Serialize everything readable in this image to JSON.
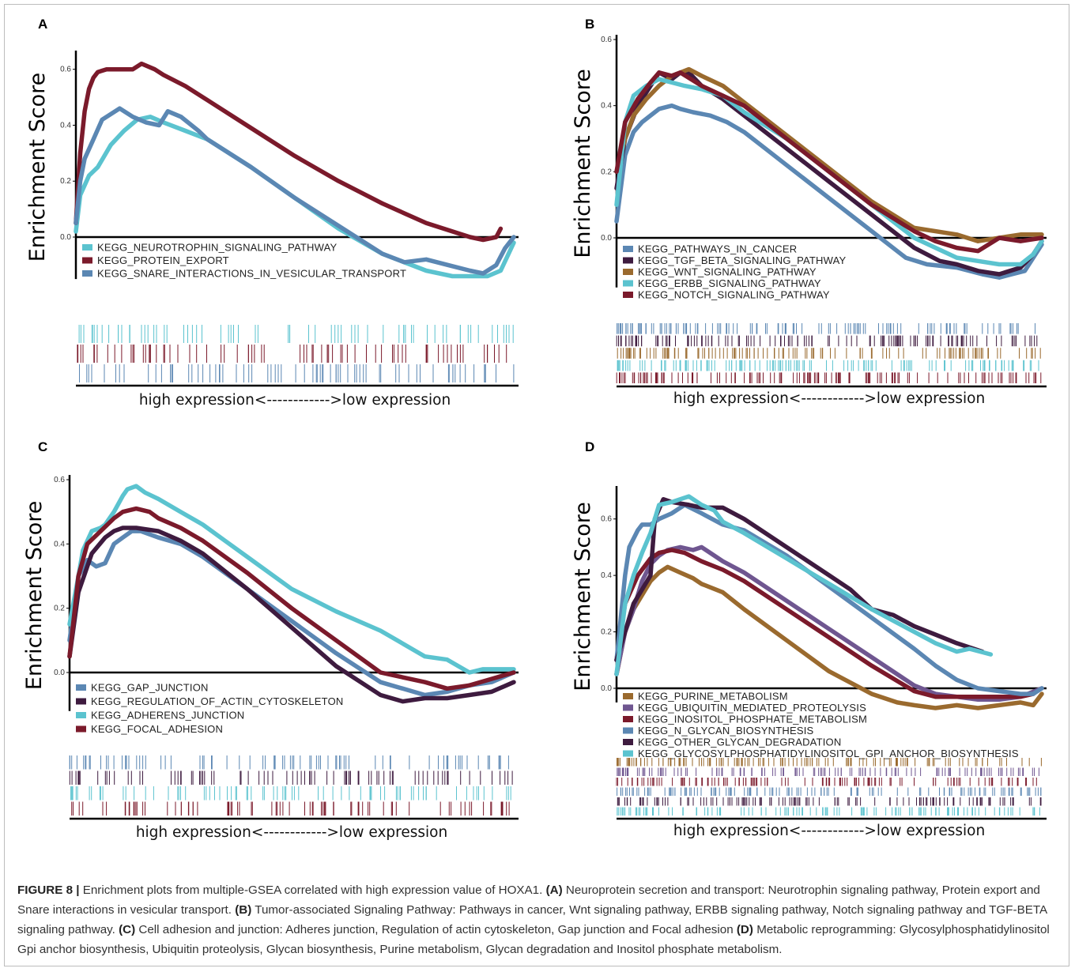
{
  "caption": {
    "figure_label": "FIGURE 8 |",
    "intro": " Enrichment plots from multiple-GSEA correlated with high expression value of HOXA1. ",
    "a_label": "(A)",
    "a_text": " Neuroprotein secretion and transport: Neurotrophin signaling pathway, Protein export and Snare interactions in vesicular transport. ",
    "b_label": "(B)",
    "b_text": " Tumor-associated Signaling Pathway: Pathways in cancer, Wnt signaling pathway, ERBB signaling pathway, Notch signaling pathway and TGF-BETA signaling pathway. ",
    "c_label": "(C)",
    "c_text": " Cell adhesion and junction: Adheres junction, Regulation of actin cytoskeleton, Gap junction and Focal adhesion ",
    "d_label": "(D)",
    "d_text": " Metabolic reprogramming: Glycosylphosphatidylinositol Gpi anchor biosynthesis, Ubiquitin proteolysis, Glycan biosynthesis, Purine metabolism, Glycan degradation and Inositol phosphate metabolism."
  },
  "colors": {
    "cyan": "#5bc3cf",
    "darkred": "#7b1a2b",
    "steelblue": "#5b87b3",
    "darkpurple": "#3e1b3f",
    "brown": "#9a6a2e",
    "purple": "#6f5690",
    "black": "#000000"
  },
  "chart_data": [
    {
      "panel": "A",
      "type": "line",
      "ylabel": "Enrichment Score",
      "xlabel": "high expression<------------>low expression",
      "ylim": [
        -0.15,
        0.65
      ],
      "yticks": [
        "0.6",
        "0.4",
        "0.2",
        "0.0"
      ],
      "ytick_values": [
        0.6,
        0.4,
        0.2,
        0.0
      ],
      "x_range": [
        0,
        1
      ],
      "legend_position": "bottom-left",
      "series": [
        {
          "name": "KEGG_NEUROTROPHIN_SIGNALING_PATHWAY",
          "color": "#5bc3cf",
          "x": [
            0,
            0.01,
            0.03,
            0.05,
            0.08,
            0.11,
            0.14,
            0.17,
            0.2,
            0.25,
            0.3,
            0.4,
            0.5,
            0.6,
            0.7,
            0.8,
            0.86,
            0.9,
            0.94,
            0.97,
            1.0
          ],
          "y": [
            0.02,
            0.15,
            0.22,
            0.25,
            0.33,
            0.38,
            0.42,
            0.43,
            0.41,
            0.38,
            0.35,
            0.25,
            0.14,
            0.03,
            -0.06,
            -0.12,
            -0.14,
            -0.14,
            -0.14,
            -0.12,
            -0.02
          ]
        },
        {
          "name": "KEGG_PROTEIN_EXPORT",
          "color": "#7b1a2b",
          "x": [
            0,
            0.01,
            0.02,
            0.03,
            0.04,
            0.05,
            0.07,
            0.1,
            0.13,
            0.15,
            0.18,
            0.2,
            0.25,
            0.3,
            0.4,
            0.5,
            0.6,
            0.7,
            0.8,
            0.9,
            0.93,
            0.96,
            0.97
          ],
          "y": [
            0.05,
            0.3,
            0.45,
            0.53,
            0.57,
            0.59,
            0.6,
            0.6,
            0.6,
            0.62,
            0.6,
            0.58,
            0.54,
            0.49,
            0.39,
            0.29,
            0.2,
            0.12,
            0.05,
            0.0,
            -0.01,
            0.0,
            0.03
          ]
        },
        {
          "name": "KEGG_SNARE_INTERACTIONS_IN_VESICULAR_TRANSPORT",
          "color": "#5b87b3",
          "x": [
            0,
            0.01,
            0.02,
            0.04,
            0.06,
            0.08,
            0.1,
            0.13,
            0.16,
            0.19,
            0.21,
            0.24,
            0.28,
            0.3,
            0.4,
            0.5,
            0.6,
            0.7,
            0.75,
            0.8,
            0.85,
            0.9,
            0.93,
            0.96,
            0.98,
            1.0
          ],
          "y": [
            0.05,
            0.2,
            0.28,
            0.35,
            0.42,
            0.44,
            0.46,
            0.43,
            0.41,
            0.4,
            0.45,
            0.43,
            0.38,
            0.35,
            0.25,
            0.14,
            0.04,
            -0.06,
            -0.09,
            -0.08,
            -0.1,
            -0.12,
            -0.13,
            -0.1,
            -0.04,
            0.0
          ]
        }
      ]
    },
    {
      "panel": "B",
      "type": "line",
      "ylabel": "Enrichment Score",
      "xlabel": "high expression<------------>low expression",
      "ylim": [
        -0.15,
        0.6
      ],
      "yticks": [
        "0.6",
        "0.4",
        "0.2",
        "0.0"
      ],
      "ytick_values": [
        0.6,
        0.4,
        0.2,
        0.0
      ],
      "x_range": [
        0,
        1
      ],
      "legend_position": "bottom-left",
      "series": [
        {
          "name": "KEGG_PATHWAYS_IN_CANCER",
          "color": "#5b87b3",
          "x": [
            0,
            0.02,
            0.04,
            0.06,
            0.08,
            0.1,
            0.13,
            0.15,
            0.18,
            0.22,
            0.26,
            0.3,
            0.35,
            0.4,
            0.5,
            0.6,
            0.68,
            0.73,
            0.8,
            0.86,
            0.9,
            0.93,
            0.96,
            0.98,
            1.0
          ],
          "y": [
            0.05,
            0.25,
            0.32,
            0.35,
            0.37,
            0.39,
            0.4,
            0.39,
            0.38,
            0.37,
            0.35,
            0.32,
            0.27,
            0.22,
            0.12,
            0.02,
            -0.06,
            -0.08,
            -0.09,
            -0.11,
            -0.12,
            -0.11,
            -0.1,
            -0.06,
            -0.02
          ]
        },
        {
          "name": "KEGG_TGF_BETA_SIGNALING_PATHWAY",
          "color": "#3e1b3f",
          "x": [
            0,
            0.02,
            0.05,
            0.08,
            0.1,
            0.13,
            0.15,
            0.17,
            0.2,
            0.25,
            0.3,
            0.4,
            0.5,
            0.6,
            0.7,
            0.76,
            0.8,
            0.85,
            0.9,
            0.95,
            0.98,
            1.0
          ],
          "y": [
            0.15,
            0.3,
            0.4,
            0.46,
            0.5,
            0.48,
            0.5,
            0.5,
            0.46,
            0.42,
            0.37,
            0.27,
            0.17,
            0.07,
            -0.03,
            -0.07,
            -0.08,
            -0.1,
            -0.11,
            -0.09,
            -0.05,
            -0.01
          ]
        },
        {
          "name": "KEGG_WNT_SIGNALING_PATHWAY",
          "color": "#9a6a2e",
          "x": [
            0,
            0.02,
            0.04,
            0.07,
            0.1,
            0.13,
            0.15,
            0.17,
            0.2,
            0.25,
            0.3,
            0.4,
            0.5,
            0.6,
            0.7,
            0.8,
            0.85,
            0.9,
            0.95,
            1.0
          ],
          "y": [
            0.2,
            0.3,
            0.37,
            0.42,
            0.46,
            0.49,
            0.5,
            0.51,
            0.49,
            0.46,
            0.41,
            0.31,
            0.21,
            0.11,
            0.03,
            0.01,
            -0.01,
            0.0,
            0.01,
            0.01
          ]
        },
        {
          "name": "KEGG_ERBB_SIGNALING_PATHWAY",
          "color": "#5bc3cf",
          "x": [
            0,
            0.02,
            0.04,
            0.07,
            0.1,
            0.13,
            0.16,
            0.2,
            0.25,
            0.3,
            0.4,
            0.5,
            0.6,
            0.7,
            0.8,
            0.85,
            0.9,
            0.95,
            0.98,
            1.0
          ],
          "y": [
            0.1,
            0.35,
            0.43,
            0.46,
            0.48,
            0.47,
            0.46,
            0.45,
            0.43,
            0.38,
            0.3,
            0.2,
            0.1,
            0.0,
            -0.06,
            -0.07,
            -0.08,
            -0.08,
            -0.05,
            -0.01
          ]
        },
        {
          "name": "KEGG_NOTCH_SIGNALING_PATHWAY",
          "color": "#7b1a2b",
          "x": [
            0,
            0.02,
            0.05,
            0.08,
            0.1,
            0.13,
            0.15,
            0.2,
            0.25,
            0.3,
            0.4,
            0.5,
            0.6,
            0.7,
            0.75,
            0.8,
            0.85,
            0.9,
            0.95,
            1.0
          ],
          "y": [
            0.2,
            0.35,
            0.42,
            0.47,
            0.5,
            0.49,
            0.5,
            0.46,
            0.43,
            0.4,
            0.3,
            0.2,
            0.1,
            0.02,
            -0.01,
            -0.03,
            -0.04,
            0.0,
            -0.01,
            0.0
          ]
        }
      ]
    },
    {
      "panel": "C",
      "type": "line",
      "ylabel": "Enrichment Score",
      "xlabel": "high expression<------------>low expression",
      "ylim": [
        -0.12,
        0.6
      ],
      "yticks": [
        "0.6",
        "0.4",
        "0.2",
        "0.0"
      ],
      "ytick_values": [
        0.6,
        0.4,
        0.2,
        0.0
      ],
      "x_range": [
        0,
        1
      ],
      "legend_position": "bottom-left",
      "series": [
        {
          "name": "KEGG_GAP_JUNCTION",
          "color": "#5b87b3",
          "x": [
            0,
            0.02,
            0.04,
            0.06,
            0.08,
            0.1,
            0.12,
            0.14,
            0.16,
            0.2,
            0.25,
            0.3,
            0.4,
            0.5,
            0.6,
            0.7,
            0.8,
            0.85,
            0.9,
            0.95,
            1.0
          ],
          "y": [
            0.1,
            0.3,
            0.35,
            0.33,
            0.34,
            0.4,
            0.42,
            0.44,
            0.44,
            0.42,
            0.4,
            0.36,
            0.26,
            0.16,
            0.06,
            -0.03,
            -0.07,
            -0.06,
            -0.04,
            -0.03,
            0.0
          ]
        },
        {
          "name": "KEGG_REGULATION_OF_ACTIN_CYTOSKELETON",
          "color": "#3e1b3f",
          "x": [
            0,
            0.02,
            0.05,
            0.08,
            0.1,
            0.12,
            0.15,
            0.2,
            0.25,
            0.3,
            0.4,
            0.5,
            0.6,
            0.7,
            0.75,
            0.8,
            0.85,
            0.9,
            0.95,
            1.0
          ],
          "y": [
            0.05,
            0.25,
            0.37,
            0.42,
            0.44,
            0.45,
            0.45,
            0.44,
            0.41,
            0.37,
            0.26,
            0.14,
            0.02,
            -0.07,
            -0.09,
            -0.08,
            -0.08,
            -0.07,
            -0.06,
            -0.03
          ]
        },
        {
          "name": "KEGG_ADHERENS_JUNCTION",
          "color": "#5bc3cf",
          "x": [
            0,
            0.02,
            0.03,
            0.05,
            0.07,
            0.08,
            0.1,
            0.12,
            0.13,
            0.15,
            0.17,
            0.2,
            0.25,
            0.3,
            0.35,
            0.4,
            0.5,
            0.6,
            0.7,
            0.8,
            0.85,
            0.9,
            0.93,
            0.96,
            1.0
          ],
          "y": [
            0.15,
            0.3,
            0.38,
            0.44,
            0.45,
            0.46,
            0.5,
            0.55,
            0.57,
            0.58,
            0.56,
            0.54,
            0.5,
            0.46,
            0.41,
            0.36,
            0.26,
            0.19,
            0.13,
            0.05,
            0.04,
            0.0,
            0.01,
            0.01,
            0.01
          ]
        },
        {
          "name": "KEGG_FOCAL_ADHESION",
          "color": "#7b1a2b",
          "x": [
            0,
            0.02,
            0.04,
            0.07,
            0.1,
            0.12,
            0.15,
            0.18,
            0.2,
            0.25,
            0.3,
            0.4,
            0.5,
            0.6,
            0.7,
            0.8,
            0.85,
            0.9,
            0.95,
            1.0
          ],
          "y": [
            0.05,
            0.3,
            0.4,
            0.44,
            0.48,
            0.5,
            0.51,
            0.5,
            0.48,
            0.45,
            0.41,
            0.31,
            0.2,
            0.1,
            0.0,
            -0.03,
            -0.05,
            -0.04,
            -0.02,
            0.0
          ]
        }
      ]
    },
    {
      "panel": "D",
      "type": "line",
      "ylabel": "Enrichment Score",
      "xlabel": "high expression<------------>low expression",
      "ylim": [
        -0.05,
        0.7
      ],
      "yticks": [
        "0.6",
        "0.4",
        "0.2",
        "0.0"
      ],
      "ytick_values": [
        0.6,
        0.4,
        0.2,
        0.0
      ],
      "x_range": [
        0,
        1
      ],
      "legend_position": "bottom-left",
      "series": [
        {
          "name": "KEGG_PURINE_METABOLISM",
          "color": "#9a6a2e",
          "x": [
            0,
            0.02,
            0.04,
            0.06,
            0.08,
            0.1,
            0.12,
            0.15,
            0.18,
            0.2,
            0.25,
            0.3,
            0.4,
            0.5,
            0.6,
            0.66,
            0.7,
            0.75,
            0.8,
            0.85,
            0.9,
            0.95,
            0.98,
            1.0
          ],
          "y": [
            0.05,
            0.2,
            0.28,
            0.33,
            0.38,
            0.41,
            0.43,
            0.41,
            0.39,
            0.37,
            0.34,
            0.28,
            0.17,
            0.06,
            -0.02,
            -0.05,
            -0.06,
            -0.07,
            -0.06,
            -0.07,
            -0.06,
            -0.05,
            -0.06,
            -0.02
          ]
        },
        {
          "name": "KEGG_UBIQUITIN_MEDIATED_PROTEOLYSIS",
          "color": "#6f5690",
          "x": [
            0,
            0.02,
            0.04,
            0.06,
            0.08,
            0.1,
            0.12,
            0.15,
            0.18,
            0.2,
            0.22,
            0.25,
            0.3,
            0.4,
            0.5,
            0.6,
            0.7,
            0.75,
            0.8,
            0.85,
            0.9,
            0.95,
            1.0
          ],
          "y": [
            0.05,
            0.2,
            0.28,
            0.38,
            0.44,
            0.47,
            0.49,
            0.5,
            0.49,
            0.5,
            0.48,
            0.45,
            0.41,
            0.31,
            0.21,
            0.11,
            0.01,
            -0.02,
            -0.03,
            -0.04,
            -0.04,
            -0.03,
            0.0
          ]
        },
        {
          "name": "KEGG_INOSITOL_PHOSPHATE_METABOLISM",
          "color": "#7b1a2b",
          "x": [
            0,
            0.02,
            0.05,
            0.08,
            0.1,
            0.13,
            0.16,
            0.2,
            0.25,
            0.3,
            0.4,
            0.5,
            0.6,
            0.7,
            0.75,
            0.8,
            0.85,
            0.9,
            0.95,
            0.98
          ],
          "y": [
            0.1,
            0.3,
            0.4,
            0.46,
            0.48,
            0.49,
            0.48,
            0.45,
            0.42,
            0.38,
            0.28,
            0.18,
            0.08,
            -0.01,
            -0.03,
            -0.03,
            -0.03,
            -0.03,
            -0.03,
            -0.02
          ]
        },
        {
          "name": "KEGG_N_GLYCAN_BIOSYNTHESIS",
          "color": "#5b87b3",
          "x": [
            0,
            0.02,
            0.03,
            0.05,
            0.06,
            0.08,
            0.1,
            0.13,
            0.16,
            0.2,
            0.25,
            0.3,
            0.4,
            0.5,
            0.6,
            0.7,
            0.75,
            0.8,
            0.85,
            0.9,
            0.95,
            0.98,
            1.0
          ],
          "y": [
            0.1,
            0.4,
            0.5,
            0.56,
            0.58,
            0.58,
            0.6,
            0.62,
            0.65,
            0.62,
            0.58,
            0.56,
            0.47,
            0.36,
            0.25,
            0.14,
            0.08,
            0.03,
            0.0,
            -0.01,
            -0.02,
            -0.02,
            0.0
          ]
        },
        {
          "name": "KEGG_OTHER_GLYCAN_DEGRADATION",
          "color": "#3e1b3f",
          "x": [
            0,
            0.02,
            0.04,
            0.06,
            0.08,
            0.09,
            0.11,
            0.13,
            0.17,
            0.2,
            0.25,
            0.3,
            0.4,
            0.5,
            0.55,
            0.6,
            0.65,
            0.7,
            0.75,
            0.8,
            0.86
          ],
          "y": [
            0.1,
            0.2,
            0.3,
            0.35,
            0.4,
            0.6,
            0.67,
            0.66,
            0.65,
            0.64,
            0.64,
            0.6,
            0.5,
            0.4,
            0.35,
            0.28,
            0.26,
            0.22,
            0.19,
            0.16,
            0.13
          ]
        },
        {
          "name": "KEGG_GLYCOSYLPHOSPHATIDYLINOSITOL_GPI_ANCHOR_BIOSYNTHESIS",
          "color": "#5bc3cf",
          "x": [
            0,
            0.02,
            0.04,
            0.06,
            0.08,
            0.1,
            0.13,
            0.15,
            0.17,
            0.2,
            0.23,
            0.25,
            0.3,
            0.4,
            0.5,
            0.6,
            0.7,
            0.75,
            0.8,
            0.83,
            0.88
          ],
          "y": [
            0.05,
            0.3,
            0.4,
            0.48,
            0.55,
            0.65,
            0.66,
            0.67,
            0.68,
            0.65,
            0.63,
            0.59,
            0.55,
            0.46,
            0.37,
            0.28,
            0.2,
            0.16,
            0.13,
            0.14,
            0.12
          ]
        }
      ]
    }
  ]
}
